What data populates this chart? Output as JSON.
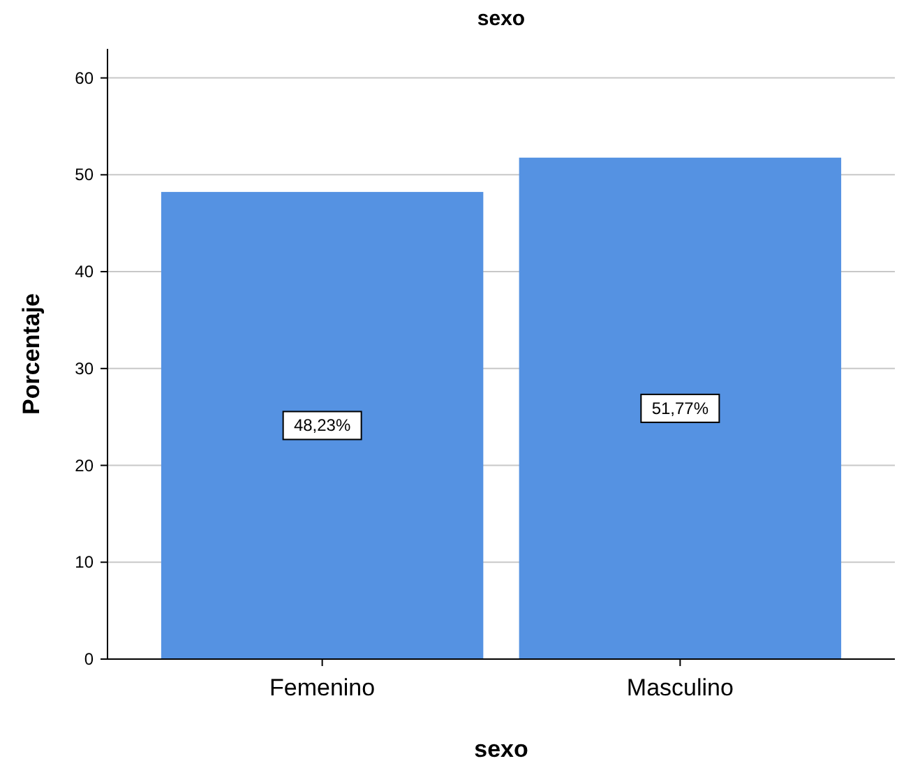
{
  "chart_data": {
    "type": "bar",
    "title": "sexo",
    "xlabel": "sexo",
    "ylabel": "Porcentaje",
    "categories": [
      "Femenino",
      "Masculino"
    ],
    "values": [
      48.23,
      51.77
    ],
    "value_labels": [
      "48,23%",
      "51,77%"
    ],
    "color": "#5592e2",
    "ylim": [
      0,
      63
    ],
    "yticks": [
      0,
      10,
      20,
      30,
      40,
      50,
      60
    ],
    "grid": "y"
  }
}
